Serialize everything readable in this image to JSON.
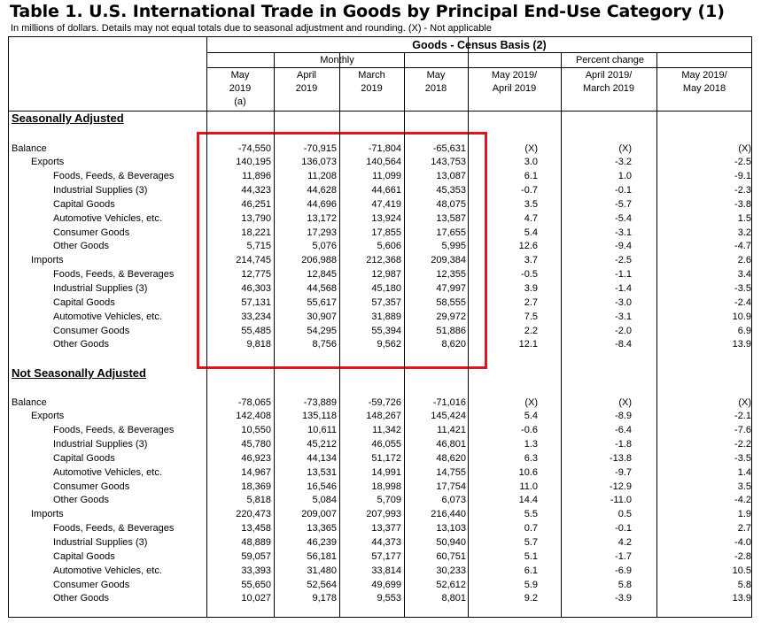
{
  "title": "Table 1. U.S. International Trade in Goods by Principal End-Use Category (1)",
  "note": "In millions of dollars. Details may not equal totals due to seasonal adjustment and rounding. (X) - Not applicable",
  "group_header": "Goods - Census Basis (2)",
  "monthly_label": "Monthly",
  "pct_label": "Percent change",
  "columns": [
    {
      "line1": "May",
      "line2": "2019",
      "line3": "(a)"
    },
    {
      "line1": "April",
      "line2": "2019",
      "line3": ""
    },
    {
      "line1": "March",
      "line2": "2019",
      "line3": ""
    },
    {
      "line1": "May",
      "line2": "2018",
      "line3": ""
    },
    {
      "line1": "May 2019/",
      "line2": "April 2019",
      "line3": ""
    },
    {
      "line1": "April 2019/",
      "line2": "March 2019",
      "line3": ""
    },
    {
      "line1": "May 2019/",
      "line2": "May 2018",
      "line3": ""
    }
  ],
  "sections": [
    {
      "title": "Seasonally Adjusted",
      "rows": [
        {
          "label": "Balance",
          "level": 0,
          "values": [
            "-74,550",
            "-70,915",
            "-71,804",
            "-65,631",
            "(X)",
            "(X)",
            "(X)"
          ]
        },
        {
          "label": "Exports",
          "level": 1,
          "values": [
            "140,195",
            "136,073",
            "140,564",
            "143,753",
            "3.0",
            "-3.2",
            "-2.5"
          ]
        },
        {
          "label": "Foods, Feeds, & Beverages",
          "level": 2,
          "values": [
            "11,896",
            "11,208",
            "11,099",
            "13,087",
            "6.1",
            "1.0",
            "-9.1"
          ]
        },
        {
          "label": "Industrial Supplies (3)",
          "level": 2,
          "values": [
            "44,323",
            "44,628",
            "44,661",
            "45,353",
            "-0.7",
            "-0.1",
            "-2.3"
          ]
        },
        {
          "label": "Capital Goods",
          "level": 2,
          "values": [
            "46,251",
            "44,696",
            "47,419",
            "48,075",
            "3.5",
            "-5.7",
            "-3.8"
          ]
        },
        {
          "label": "Automotive Vehicles, etc.",
          "level": 2,
          "values": [
            "13,790",
            "13,172",
            "13,924",
            "13,587",
            "4.7",
            "-5.4",
            "1.5"
          ]
        },
        {
          "label": "Consumer Goods",
          "level": 2,
          "values": [
            "18,221",
            "17,293",
            "17,855",
            "17,655",
            "5.4",
            "-3.1",
            "3.2"
          ]
        },
        {
          "label": "Other Goods",
          "level": 2,
          "values": [
            "5,715",
            "5,076",
            "5,606",
            "5,995",
            "12.6",
            "-9.4",
            "-4.7"
          ]
        },
        {
          "label": "Imports",
          "level": 1,
          "values": [
            "214,745",
            "206,988",
            "212,368",
            "209,384",
            "3.7",
            "-2.5",
            "2.6"
          ]
        },
        {
          "label": "Foods, Feeds, & Beverages",
          "level": 2,
          "values": [
            "12,775",
            "12,845",
            "12,987",
            "12,355",
            "-0.5",
            "-1.1",
            "3.4"
          ]
        },
        {
          "label": "Industrial Supplies (3)",
          "level": 2,
          "values": [
            "46,303",
            "44,568",
            "45,180",
            "47,997",
            "3.9",
            "-1.4",
            "-3.5"
          ]
        },
        {
          "label": "Capital Goods",
          "level": 2,
          "values": [
            "57,131",
            "55,617",
            "57,357",
            "58,555",
            "2.7",
            "-3.0",
            "-2.4"
          ]
        },
        {
          "label": "Automotive Vehicles, etc.",
          "level": 2,
          "values": [
            "33,234",
            "30,907",
            "31,889",
            "29,972",
            "7.5",
            "-3.1",
            "10.9"
          ]
        },
        {
          "label": "Consumer Goods",
          "level": 2,
          "values": [
            "55,485",
            "54,295",
            "55,394",
            "51,886",
            "2.2",
            "-2.0",
            "6.9"
          ]
        },
        {
          "label": "Other Goods",
          "level": 2,
          "values": [
            "9,818",
            "8,756",
            "9,562",
            "8,620",
            "12.1",
            "-8.4",
            "13.9"
          ]
        }
      ]
    },
    {
      "title": "Not Seasonally Adjusted",
      "rows": [
        {
          "label": "Balance",
          "level": 0,
          "values": [
            "-78,065",
            "-73,889",
            "-59,726",
            "-71,016",
            "(X)",
            "(X)",
            "(X)"
          ]
        },
        {
          "label": "Exports",
          "level": 1,
          "values": [
            "142,408",
            "135,118",
            "148,267",
            "145,424",
            "5.4",
            "-8.9",
            "-2.1"
          ]
        },
        {
          "label": "Foods, Feeds, & Beverages",
          "level": 2,
          "values": [
            "10,550",
            "10,611",
            "11,342",
            "11,421",
            "-0.6",
            "-6.4",
            "-7.6"
          ]
        },
        {
          "label": "Industrial Supplies (3)",
          "level": 2,
          "values": [
            "45,780",
            "45,212",
            "46,055",
            "46,801",
            "1.3",
            "-1.8",
            "-2.2"
          ]
        },
        {
          "label": "Capital Goods",
          "level": 2,
          "values": [
            "46,923",
            "44,134",
            "51,172",
            "48,620",
            "6.3",
            "-13.8",
            "-3.5"
          ]
        },
        {
          "label": "Automotive Vehicles, etc.",
          "level": 2,
          "values": [
            "14,967",
            "13,531",
            "14,991",
            "14,755",
            "10.6",
            "-9.7",
            "1.4"
          ]
        },
        {
          "label": "Consumer Goods",
          "level": 2,
          "values": [
            "18,369",
            "16,546",
            "18,998",
            "17,754",
            "11.0",
            "-12.9",
            "3.5"
          ]
        },
        {
          "label": "Other Goods",
          "level": 2,
          "values": [
            "5,818",
            "5,084",
            "5,709",
            "6,073",
            "14.4",
            "-11.0",
            "-4.2"
          ]
        },
        {
          "label": "Imports",
          "level": 1,
          "values": [
            "220,473",
            "209,007",
            "207,993",
            "216,440",
            "5.5",
            "0.5",
            "1.9"
          ]
        },
        {
          "label": "Foods, Feeds, & Beverages",
          "level": 2,
          "values": [
            "13,458",
            "13,365",
            "13,377",
            "13,103",
            "0.7",
            "-0.1",
            "2.7"
          ]
        },
        {
          "label": "Industrial Supplies (3)",
          "level": 2,
          "values": [
            "48,889",
            "46,239",
            "44,373",
            "50,940",
            "5.7",
            "4.2",
            "-4.0"
          ]
        },
        {
          "label": "Capital Goods",
          "level": 2,
          "values": [
            "59,057",
            "56,181",
            "57,177",
            "60,751",
            "5.1",
            "-1.7",
            "-2.8"
          ]
        },
        {
          "label": "Automotive Vehicles, etc.",
          "level": 2,
          "values": [
            "33,393",
            "31,480",
            "33,814",
            "30,233",
            "6.1",
            "-6.9",
            "10.5"
          ]
        },
        {
          "label": "Consumer Goods",
          "level": 2,
          "values": [
            "55,650",
            "52,564",
            "49,699",
            "52,612",
            "5.9",
            "5.8",
            "5.8"
          ]
        },
        {
          "label": "Other Goods",
          "level": 2,
          "values": [
            "10,027",
            "9,178",
            "9,553",
            "8,801",
            "9.2",
            "-3.9",
            "13.9"
          ]
        }
      ]
    }
  ],
  "highlight_color": "#e0141e"
}
